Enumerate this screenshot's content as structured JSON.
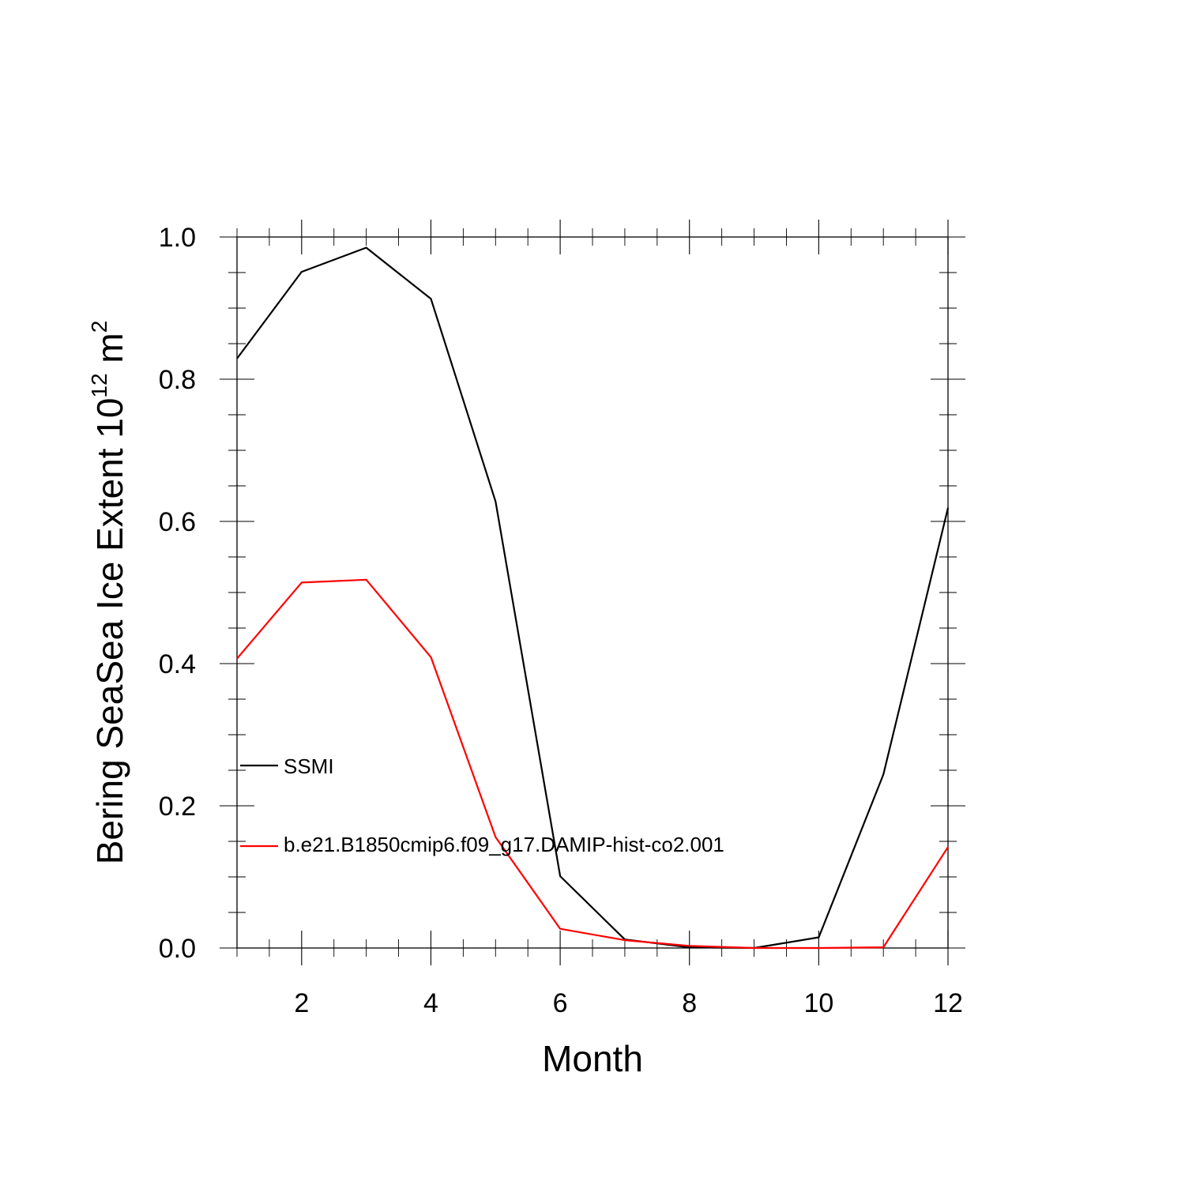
{
  "chart_data": {
    "type": "line",
    "xlabel": "Month",
    "ylabel_main": "Bering SeaSea Ice Extent 10",
    "ylabel_exp": "12",
    "ylabel_unit": " m",
    "ylabel_unit_exp": "2",
    "xlim": [
      1,
      12
    ],
    "ylim": [
      0,
      1.0
    ],
    "x_ticks": [
      2,
      4,
      6,
      8,
      10,
      12
    ],
    "y_ticks": [
      0.0,
      0.2,
      0.4,
      0.6,
      0.8,
      1.0
    ],
    "y_tick_labels": [
      "0.0",
      "0.2",
      "0.4",
      "0.6",
      "0.8",
      "1.0"
    ],
    "x": [
      1,
      2,
      3,
      4,
      5,
      6,
      7,
      8,
      9,
      10,
      11,
      12
    ],
    "series": [
      {
        "name": "SSMI",
        "color": "#000000",
        "values": [
          0.829,
          0.951,
          0.985,
          0.913,
          0.628,
          0.101,
          0.012,
          0.001,
          0.0,
          0.015,
          0.244,
          0.619
        ]
      },
      {
        "name": "b.e21.B1850cmip6.f09_g17.DAMIP-hist-co2.001",
        "color": "#ff0000",
        "values": [
          0.407,
          0.514,
          0.518,
          0.409,
          0.156,
          0.027,
          0.011,
          0.003,
          0.0,
          0.0,
          0.001,
          0.142
        ]
      }
    ],
    "legend_position": "left-middle inside plot",
    "grid": false
  }
}
